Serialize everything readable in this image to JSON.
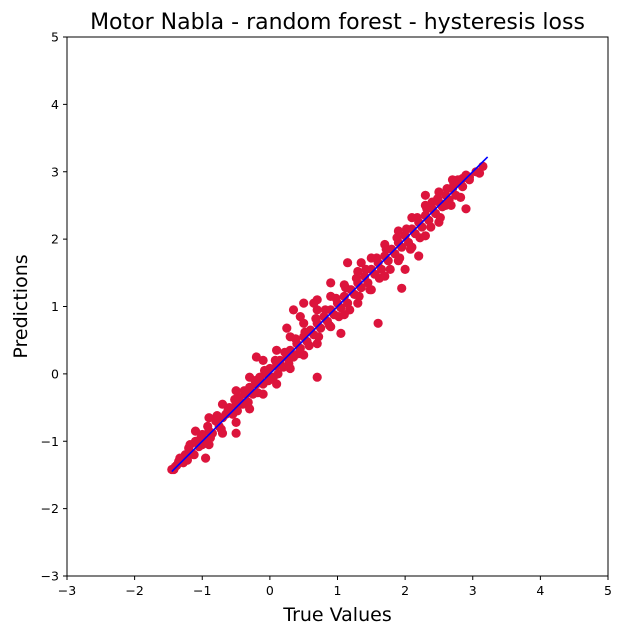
{
  "chart_data": {
    "type": "scatter",
    "title": "Motor Nabla - random forest - hysteresis loss",
    "xlabel": "True Values",
    "ylabel": "Predictions",
    "xlim": [
      -3,
      5
    ],
    "ylim": [
      -3,
      5
    ],
    "xticks": [
      -3,
      -2,
      -1,
      0,
      1,
      2,
      3,
      4,
      5
    ],
    "yticks": [
      -3,
      -2,
      -1,
      0,
      1,
      2,
      3,
      4,
      5
    ],
    "grid": false,
    "colors": {
      "points": "#dc143c",
      "reference_line": "#0000ff"
    },
    "reference_line": {
      "x": [
        -1.45,
        3.22
      ],
      "y": [
        -1.45,
        3.22
      ]
    },
    "series": [
      {
        "points": [
          [
            -1.42,
            -1.42
          ],
          [
            -1.38,
            -1.36
          ],
          [
            -1.35,
            -1.3
          ],
          [
            -1.3,
            -1.27
          ],
          [
            -1.25,
            -1.2
          ],
          [
            -1.2,
            -1.1
          ],
          [
            -1.15,
            -1.18
          ],
          [
            -1.1,
            -1.0
          ],
          [
            -1.05,
            -1.08
          ],
          [
            -1.0,
            -0.9
          ],
          [
            -0.95,
            -0.98
          ],
          [
            -0.9,
            -0.85
          ],
          [
            -0.85,
            -0.88
          ],
          [
            -0.8,
            -0.7
          ],
          [
            -0.75,
            -0.78
          ],
          [
            -0.7,
            -0.65
          ],
          [
            -0.65,
            -0.6
          ],
          [
            -0.6,
            -0.5
          ],
          [
            -0.55,
            -0.6
          ],
          [
            -0.5,
            -0.45
          ],
          [
            -0.45,
            -0.35
          ],
          [
            -0.4,
            -0.45
          ],
          [
            -0.35,
            -0.3
          ],
          [
            -0.3,
            -0.2
          ],
          [
            -0.25,
            -0.3
          ],
          [
            -0.2,
            -0.15
          ],
          [
            -0.15,
            -0.05
          ],
          [
            -0.1,
            -0.15
          ],
          [
            -0.05,
            0.0
          ],
          [
            0.0,
            0.08
          ],
          [
            0.05,
            -0.05
          ],
          [
            0.1,
            0.12
          ],
          [
            0.15,
            0.2
          ],
          [
            0.2,
            0.1
          ],
          [
            0.25,
            0.25
          ],
          [
            0.3,
            0.35
          ],
          [
            0.35,
            0.25
          ],
          [
            0.4,
            0.45
          ],
          [
            0.45,
            0.38
          ],
          [
            0.5,
            0.55
          ],
          [
            0.55,
            0.48
          ],
          [
            0.6,
            0.65
          ],
          [
            0.65,
            0.58
          ],
          [
            0.7,
            0.75
          ],
          [
            0.75,
            0.68
          ],
          [
            0.8,
            0.85
          ],
          [
            0.85,
            0.78
          ],
          [
            0.9,
            0.95
          ],
          [
            0.95,
            0.88
          ],
          [
            1.0,
            1.05
          ],
          [
            1.05,
            0.98
          ],
          [
            1.1,
            1.15
          ],
          [
            1.15,
            1.05
          ],
          [
            1.2,
            1.25
          ],
          [
            1.25,
            1.18
          ],
          [
            1.3,
            1.35
          ],
          [
            1.35,
            1.28
          ],
          [
            1.4,
            1.45
          ],
          [
            1.45,
            1.35
          ],
          [
            1.5,
            1.55
          ],
          [
            1.55,
            1.48
          ],
          [
            1.6,
            1.65
          ],
          [
            1.65,
            1.55
          ],
          [
            1.7,
            1.75
          ],
          [
            1.75,
            1.68
          ],
          [
            1.8,
            1.85
          ],
          [
            1.85,
            1.78
          ],
          [
            1.9,
            1.95
          ],
          [
            1.95,
            1.88
          ],
          [
            2.0,
            2.05
          ],
          [
            2.05,
            1.95
          ],
          [
            2.1,
            2.15
          ],
          [
            2.15,
            2.08
          ],
          [
            2.2,
            2.25
          ],
          [
            2.25,
            2.18
          ],
          [
            2.3,
            2.35
          ],
          [
            2.35,
            2.28
          ],
          [
            2.4,
            2.45
          ],
          [
            2.45,
            2.38
          ],
          [
            2.5,
            2.55
          ],
          [
            2.55,
            2.48
          ],
          [
            2.6,
            2.65
          ],
          [
            2.65,
            2.58
          ],
          [
            2.7,
            2.75
          ],
          [
            2.75,
            2.65
          ],
          [
            2.8,
            2.85
          ],
          [
            2.85,
            2.78
          ],
          [
            2.9,
            2.95
          ],
          [
            2.95,
            2.88
          ],
          [
            3.1,
            2.98
          ],
          [
            3.15,
            3.08
          ],
          [
            -1.28,
            -1.32
          ],
          [
            -1.18,
            -1.05
          ],
          [
            -1.12,
            -1.2
          ],
          [
            -1.02,
            -0.95
          ],
          [
            -0.92,
            -0.78
          ],
          [
            -0.88,
            -0.95
          ],
          [
            -0.78,
            -0.62
          ],
          [
            -0.72,
            -0.82
          ],
          [
            -0.62,
            -0.55
          ],
          [
            -0.52,
            -0.38
          ],
          [
            -0.48,
            -0.55
          ],
          [
            -0.38,
            -0.25
          ],
          [
            -0.32,
            -0.42
          ],
          [
            -0.22,
            -0.1
          ],
          [
            -0.18,
            -0.28
          ],
          [
            -0.08,
            0.05
          ],
          [
            -0.02,
            -0.1
          ],
          [
            0.08,
            0.2
          ],
          [
            0.12,
            0.0
          ],
          [
            0.22,
            0.32
          ],
          [
            0.28,
            0.15
          ],
          [
            0.38,
            0.52
          ],
          [
            0.42,
            0.3
          ],
          [
            0.52,
            0.62
          ],
          [
            0.58,
            0.42
          ],
          [
            0.68,
            0.82
          ],
          [
            0.72,
            0.55
          ],
          [
            0.82,
            0.95
          ],
          [
            0.88,
            0.72
          ],
          [
            0.98,
            1.12
          ],
          [
            1.02,
            0.85
          ],
          [
            1.12,
            1.28
          ],
          [
            1.18,
            0.95
          ],
          [
            1.28,
            1.42
          ],
          [
            1.32,
            1.15
          ],
          [
            1.42,
            1.55
          ],
          [
            1.48,
            1.25
          ],
          [
            1.58,
            1.72
          ],
          [
            1.62,
            1.42
          ],
          [
            1.72,
            1.85
          ],
          [
            1.78,
            1.55
          ],
          [
            1.88,
            2.02
          ],
          [
            1.92,
            1.72
          ],
          [
            2.02,
            2.15
          ],
          [
            2.08,
            1.85
          ],
          [
            2.18,
            2.32
          ],
          [
            2.22,
            2.02
          ],
          [
            2.32,
            2.45
          ],
          [
            2.38,
            2.18
          ],
          [
            2.48,
            2.6
          ],
          [
            2.52,
            2.32
          ],
          [
            2.62,
            2.75
          ],
          [
            2.68,
            2.5
          ],
          [
            2.78,
            2.88
          ],
          [
            2.82,
            2.62
          ],
          [
            -1.0,
            -1.05
          ],
          [
            -0.9,
            -1.05
          ],
          [
            -0.7,
            -0.88
          ],
          [
            -0.5,
            -0.72
          ],
          [
            -0.3,
            -0.52
          ],
          [
            -0.1,
            -0.3
          ],
          [
            0.1,
            -0.15
          ],
          [
            0.3,
            0.08
          ],
          [
            0.5,
            0.28
          ],
          [
            0.7,
            0.45
          ],
          [
            0.9,
            0.7
          ],
          [
            1.1,
            0.88
          ],
          [
            1.3,
            1.05
          ],
          [
            1.5,
            1.25
          ],
          [
            1.7,
            1.45
          ],
          [
            1.9,
            1.68
          ],
          [
            2.1,
            1.88
          ],
          [
            2.3,
            2.05
          ],
          [
            2.5,
            2.25
          ],
          [
            -1.1,
            -0.85
          ],
          [
            -0.9,
            -0.65
          ],
          [
            -0.7,
            -0.45
          ],
          [
            -0.5,
            -0.25
          ],
          [
            -0.3,
            -0.05
          ],
          [
            -0.1,
            0.2
          ],
          [
            0.1,
            0.35
          ],
          [
            0.3,
            0.55
          ],
          [
            0.5,
            0.75
          ],
          [
            0.7,
            0.95
          ],
          [
            0.9,
            1.15
          ],
          [
            1.1,
            1.32
          ],
          [
            1.3,
            1.52
          ],
          [
            1.5,
            1.72
          ],
          [
            1.7,
            1.92
          ],
          [
            1.9,
            2.12
          ],
          [
            2.1,
            2.32
          ],
          [
            2.3,
            2.5
          ],
          [
            2.5,
            2.7
          ],
          [
            2.7,
            2.88
          ],
          [
            -0.95,
            -1.25
          ],
          [
            -0.5,
            -0.88
          ],
          [
            0.25,
            0.68
          ],
          [
            0.5,
            1.05
          ],
          [
            0.35,
            0.95
          ],
          [
            0.7,
            -0.05
          ],
          [
            0.7,
            1.1
          ],
          [
            1.05,
            0.6
          ],
          [
            1.6,
            0.75
          ],
          [
            1.95,
            1.27
          ],
          [
            2.2,
            1.75
          ],
          [
            1.35,
            1.65
          ],
          [
            0.65,
            1.05
          ],
          [
            0.45,
            0.85
          ],
          [
            2.0,
            1.55
          ],
          [
            2.3,
            2.65
          ],
          [
            2.9,
            2.45
          ],
          [
            1.15,
            1.65
          ],
          [
            -0.2,
            0.25
          ],
          [
            0.9,
            1.35
          ],
          [
            -1.45,
            -1.42
          ],
          [
            -1.4,
            -1.38
          ],
          [
            -1.33,
            -1.25
          ],
          [
            -1.22,
            -1.28
          ],
          [
            3.05,
            3.0
          ],
          [
            2.95,
            2.92
          ],
          [
            2.85,
            2.9
          ],
          [
            2.72,
            2.82
          ],
          [
            2.6,
            2.5
          ],
          [
            2.4,
            2.55
          ]
        ]
      }
    ]
  }
}
